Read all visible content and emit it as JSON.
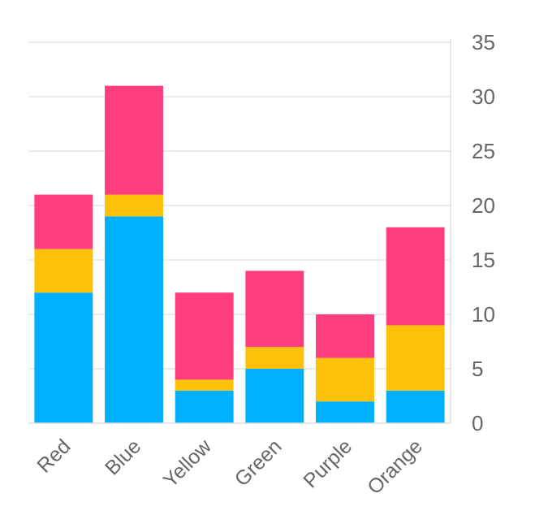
{
  "chart_data": {
    "type": "bar",
    "stacked": true,
    "categories": [
      "Red",
      "Blue",
      "Yellow",
      "Green",
      "Purple",
      "Orange"
    ],
    "series": [
      {
        "values": [
          12,
          19,
          3,
          5,
          2,
          3
        ],
        "color": "#00b0ff"
      },
      {
        "values": [
          4,
          2,
          1,
          2,
          4,
          6
        ],
        "color": "#ffc107"
      },
      {
        "values": [
          5,
          10,
          8,
          7,
          4,
          9
        ],
        "color": "#ff3d7f"
      }
    ],
    "y_ticks": [
      "0",
      "5",
      "10",
      "15",
      "20",
      "25",
      "30",
      "35"
    ],
    "ylim": [
      0,
      35
    ],
    "y_axis_position": "right",
    "grid": true,
    "legend": "none"
  }
}
